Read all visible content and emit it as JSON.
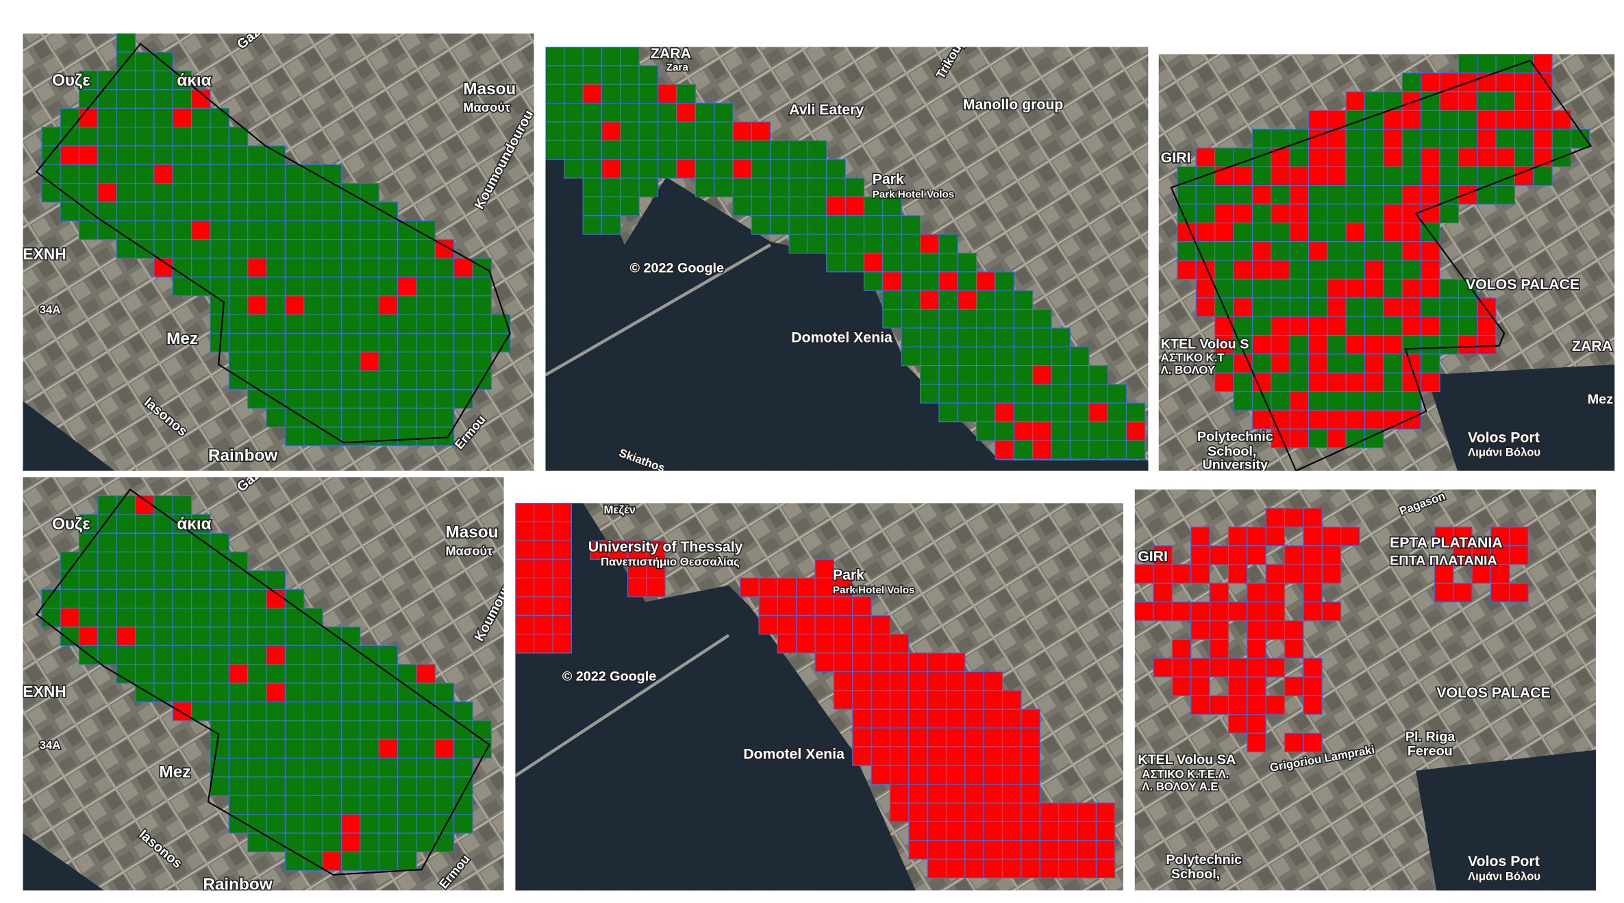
{
  "panels": [
    {
      "labels": [
        "Ουζε",
        "άκια",
        "Masou",
        "Μασούτ",
        "ΕΧΝΗ",
        "34A",
        "Mez",
        "Iasonos",
        "Rainbow",
        "Koumoundourou",
        "Gazi",
        "Ermou"
      ]
    },
    {
      "labels": [
        "ZARA",
        "Zara",
        "Avli Eatery",
        "Manollo group",
        "Park",
        "Park Hotel Volos",
        "Domotel Xenia",
        "© 2022 Google",
        "Trikoupi",
        "Skiathos"
      ]
    },
    {
      "labels": [
        "GIRI",
        "VOLOS PALACE",
        "KTEL Volou S",
        "ΑΣΤΙΚΟ Κ.Τ",
        "Λ. ΒΟΛΟΥ",
        "Polytechnic",
        "School,",
        "University",
        "Volos Port",
        "Λιμάνι Βόλου",
        "ZARA",
        "Mez"
      ]
    },
    {
      "labels": [
        "Ουζε",
        "άκια",
        "Masou",
        "Μασούτ",
        "ΕΧΝΗ",
        "34A",
        "Mez",
        "Iasonos",
        "Rainbow",
        "Koumoundourou",
        "Gazi",
        "Ermou"
      ]
    },
    {
      "labels": [
        "University of Thessaly",
        "Πανεπιστήμιο Θεσσαλίας",
        "Park",
        "Park Hotel Volos",
        "Domotel Xenia",
        "© 2022 Google",
        "Μεζέν"
      ]
    },
    {
      "labels": [
        "GIRI",
        "Pagason",
        "EPTA PLATANIA",
        "ΕΠΤΑ ΠΛΑΤΑΝΙΑ",
        "VOLOS PALACE",
        "Pl. Riga",
        "Fereou",
        "KTEL Volou SA",
        "ΑΣΤΙΚΟ Κ.Τ.Ε.Λ.",
        "Λ. ΒΟΛΟΥ Α.Ε",
        "Grigoriou Lampraki",
        "Polytechnic",
        "School,",
        "Volos Port",
        "Λιμάνι Βόλου"
      ]
    }
  ]
}
